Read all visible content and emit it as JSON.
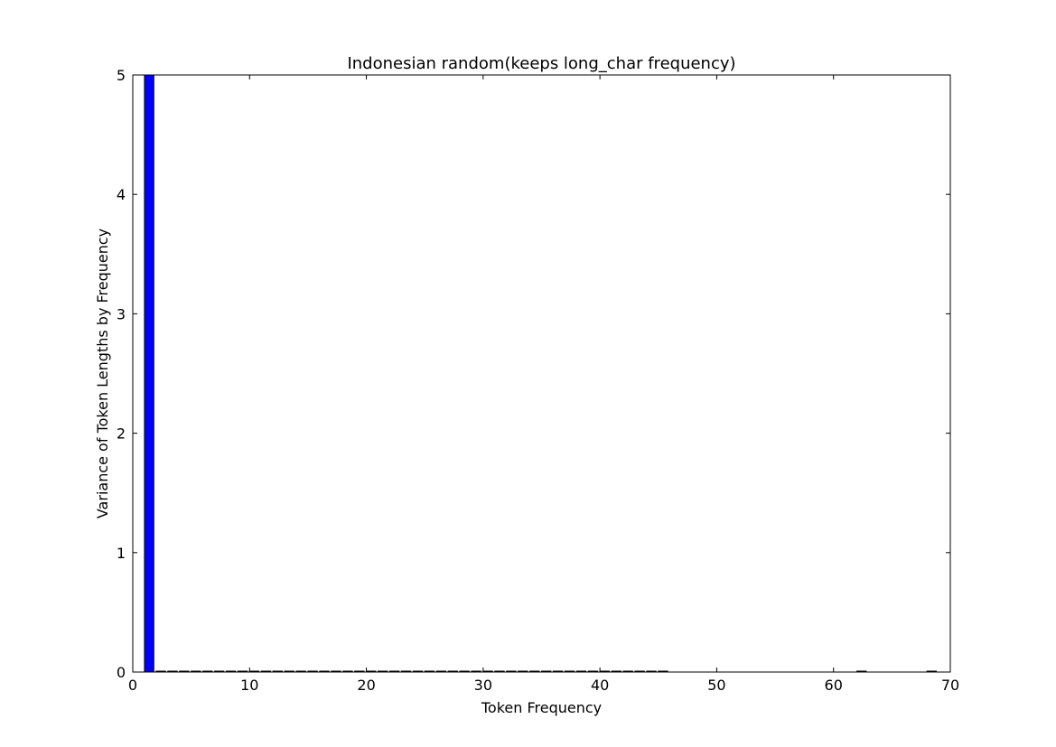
{
  "chart_data": {
    "type": "bar",
    "title": "Indonesian random(keeps long_char frequency)",
    "xlabel": "Token Frequency",
    "ylabel": "Variance of Token Lengths by Frequency",
    "xlim": [
      0,
      70
    ],
    "ylim": [
      0,
      5
    ],
    "xticks": [
      "0",
      "10",
      "20",
      "30",
      "40",
      "50",
      "60",
      "70"
    ],
    "yticks": [
      "0",
      "1",
      "2",
      "3",
      "4",
      "5"
    ],
    "grid": false,
    "legend": "none",
    "bar_color": "#0000ff",
    "bar_width": 0.8,
    "x": [
      1,
      2,
      3,
      4,
      5,
      6,
      7,
      8,
      9,
      10,
      11,
      12,
      13,
      14,
      15,
      16,
      17,
      18,
      19,
      20,
      21,
      22,
      23,
      24,
      25,
      26,
      27,
      28,
      29,
      30,
      31,
      32,
      33,
      34,
      35,
      36,
      37,
      38,
      39,
      40,
      41,
      42,
      43,
      44,
      45,
      62,
      68
    ],
    "values": [
      5,
      0,
      0,
      0,
      0,
      0,
      0,
      0,
      0,
      0,
      0,
      0,
      0,
      0,
      0,
      0,
      0,
      0,
      0,
      0,
      0,
      0,
      0,
      0,
      0,
      0,
      0,
      0,
      0,
      0,
      0,
      0,
      0,
      0,
      0,
      0,
      0,
      0,
      0,
      0,
      0,
      0,
      0,
      0,
      0,
      0,
      0
    ]
  }
}
